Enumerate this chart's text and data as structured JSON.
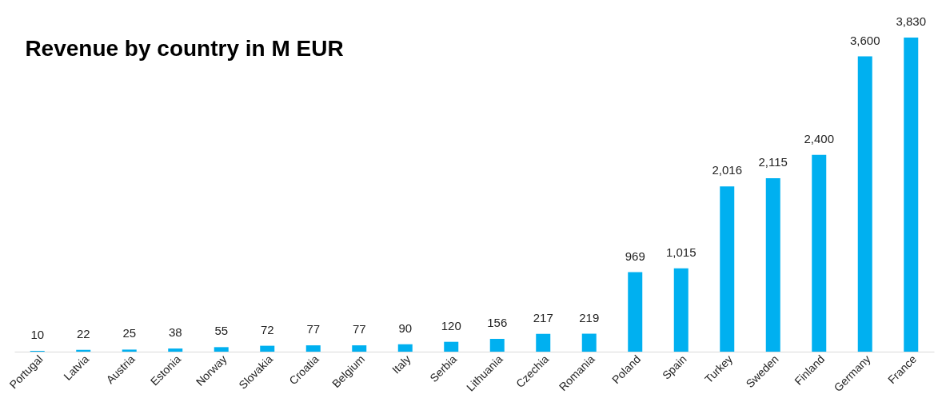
{
  "chart_data": {
    "type": "bar",
    "title": "Revenue by country in M EUR",
    "categories": [
      "Portugal",
      "Latvia",
      "Austria",
      "Estonia",
      "Norway",
      "Slovakia",
      "Croatia",
      "Belgium",
      "Italy",
      "Serbia",
      "Lithuania",
      "Czechia",
      "Romania",
      "Poland",
      "Spain",
      "Turkey",
      "Sweden",
      "Finland",
      "Germany",
      "France"
    ],
    "values": [
      10,
      22,
      25,
      38,
      55,
      72,
      77,
      77,
      90,
      120,
      156,
      217,
      219,
      969,
      1015,
      2016,
      2115,
      2400,
      3600,
      3830
    ],
    "value_labels": [
      "10",
      "22",
      "25",
      "38",
      "55",
      "72",
      "77",
      "77",
      "90",
      "120",
      "156",
      "217",
      "219",
      "969",
      "1,015",
      "2,016",
      "2,115",
      "2,400",
      "3,600",
      "3,830"
    ],
    "color": "#00b0f0",
    "grid": false
  }
}
